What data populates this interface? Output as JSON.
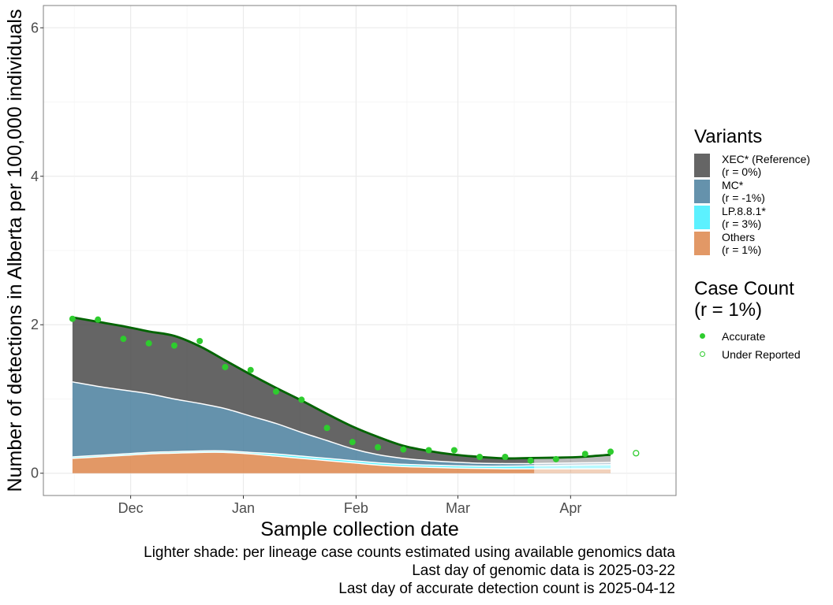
{
  "colors": {
    "xec": "#4a4a4a",
    "mc": "#4a7f9e",
    "lp": "#40eeff",
    "others": "#dd864b",
    "cases": "#2ecc2e",
    "total_line": "#006400"
  },
  "chart_data": {
    "type": "area",
    "xlabel": "Sample collection date",
    "ylabel": "Number of detections in Alberta per 100,000 individuals",
    "x_ticks": [
      "Dec",
      "Jan",
      "Feb",
      "Mar",
      "Apr"
    ],
    "y_ticks": [
      "0",
      "2",
      "4",
      "6"
    ],
    "ylim": [
      -0.3,
      6.3
    ],
    "xlim": [
      "2024-11-07",
      "2025-04-30"
    ],
    "x_tick_dates": [
      "2024-12-01",
      "2025-01-01",
      "2025-02-01",
      "2025-03-01",
      "2025-04-01"
    ],
    "grid": true,
    "stacked": true,
    "genomic_data_end": "2025-03-22",
    "x": [
      "2024-11-15",
      "2024-11-22",
      "2024-11-29",
      "2024-12-06",
      "2024-12-13",
      "2024-12-20",
      "2024-12-27",
      "2025-01-03",
      "2025-01-10",
      "2025-01-17",
      "2025-01-24",
      "2025-01-31",
      "2025-02-07",
      "2025-02-14",
      "2025-02-21",
      "2025-02-28",
      "2025-03-07",
      "2025-03-14",
      "2025-03-21",
      "2025-03-28",
      "2025-04-04",
      "2025-04-12"
    ],
    "series": [
      {
        "name": "Others",
        "values": [
          0.2,
          0.22,
          0.24,
          0.26,
          0.27,
          0.28,
          0.28,
          0.26,
          0.23,
          0.2,
          0.17,
          0.14,
          0.11,
          0.09,
          0.08,
          0.07,
          0.065,
          0.06,
          0.06,
          0.06,
          0.06,
          0.06
        ]
      },
      {
        "name": "LP.8.8.1*",
        "values": [
          0.02,
          0.02,
          0.02,
          0.02,
          0.02,
          0.02,
          0.02,
          0.02,
          0.03,
          0.03,
          0.03,
          0.03,
          0.03,
          0.03,
          0.03,
          0.03,
          0.03,
          0.035,
          0.04,
          0.045,
          0.05,
          0.055
        ]
      },
      {
        "name": "MC*",
        "values": [
          1.01,
          0.93,
          0.86,
          0.79,
          0.71,
          0.64,
          0.57,
          0.49,
          0.41,
          0.32,
          0.24,
          0.16,
          0.11,
          0.08,
          0.06,
          0.05,
          0.04,
          0.035,
          0.03,
          0.03,
          0.03,
          0.03
        ]
      },
      {
        "name": "XEC* (Reference)",
        "values": [
          0.87,
          0.87,
          0.86,
          0.84,
          0.85,
          0.77,
          0.65,
          0.56,
          0.48,
          0.43,
          0.36,
          0.3,
          0.24,
          0.17,
          0.13,
          0.1,
          0.085,
          0.07,
          0.075,
          0.075,
          0.08,
          0.105
        ]
      }
    ],
    "case_counts": {
      "accurate": {
        "x": [
          "2024-11-15",
          "2024-11-22",
          "2024-11-29",
          "2024-12-06",
          "2024-12-13",
          "2024-12-20",
          "2024-12-27",
          "2025-01-03",
          "2025-01-10",
          "2025-01-17",
          "2025-01-24",
          "2025-01-31",
          "2025-02-07",
          "2025-02-14",
          "2025-02-21",
          "2025-02-28",
          "2025-03-07",
          "2025-03-14",
          "2025-03-21",
          "2025-03-28",
          "2025-04-05",
          "2025-04-12"
        ],
        "y": [
          2.08,
          2.07,
          1.81,
          1.75,
          1.72,
          1.78,
          1.43,
          1.39,
          1.1,
          0.99,
          0.61,
          0.42,
          0.35,
          0.32,
          0.31,
          0.31,
          0.22,
          0.22,
          0.17,
          0.19,
          0.26,
          0.29
        ]
      },
      "under_reported": {
        "x": [
          "2025-04-19"
        ],
        "y": [
          0.27
        ]
      }
    },
    "legends": [
      {
        "title": "Variants",
        "entries": [
          {
            "label": "XEC* (Reference)",
            "sub": "(r = 0%)",
            "color_key": "xec"
          },
          {
            "label": "MC*",
            "sub": "(r = -1%)",
            "color_key": "mc"
          },
          {
            "label": "LP.8.8.1*",
            "sub": "(r = 3%)",
            "color_key": "lp"
          },
          {
            "label": "Others",
            "sub": "(r = 1%)",
            "color_key": "others"
          }
        ]
      },
      {
        "title_line1": "Case Count",
        "title_line2": "(r = 1%)",
        "entries": [
          {
            "label": "Accurate",
            "filled": true
          },
          {
            "label": "Under Reported",
            "filled": false
          }
        ]
      }
    ],
    "caption": [
      "Lighter shade: per lineage case counts estimated using available genomics data",
      "Last day of genomic data is 2025-03-22",
      "Last day of accurate detection count is 2025-04-12"
    ]
  }
}
